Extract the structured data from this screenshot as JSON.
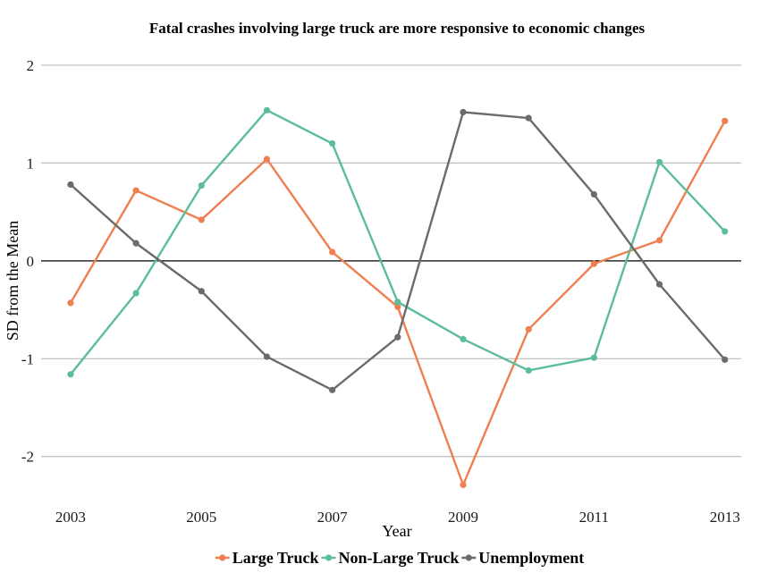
{
  "chart_data": {
    "type": "line",
    "title": "Fatal crashes involving large truck are more responsive to economic changes",
    "xlabel": "Year",
    "ylabel": "SD from the Mean",
    "x": [
      2003,
      2004,
      2005,
      2006,
      2007,
      2008,
      2009,
      2010,
      2011,
      2012,
      2013
    ],
    "xticks": [
      "2003",
      "2005",
      "2007",
      "2009",
      "2011",
      "2013"
    ],
    "xlim": [
      2002.55,
      2013.25
    ],
    "yticks": [
      "2",
      "1",
      "0",
      "-1",
      "-2"
    ],
    "ylim": [
      -2.45,
      2.1
    ],
    "grid": true,
    "reference_line": 0,
    "legend_position": "bottom",
    "series": [
      {
        "name": "Large Truck",
        "color": "#f07f50",
        "values": [
          -0.43,
          0.72,
          0.42,
          1.04,
          0.09,
          -0.47,
          -2.29,
          -0.7,
          -0.03,
          0.21,
          1.43
        ]
      },
      {
        "name": "Non-Large Truck",
        "color": "#5bbd9b",
        "values": [
          -1.16,
          -0.33,
          0.77,
          1.54,
          1.2,
          -0.42,
          -0.8,
          -1.12,
          -0.99,
          1.01,
          0.3
        ]
      },
      {
        "name": "Unemployment",
        "color": "#6b6b6b",
        "values": [
          0.78,
          0.18,
          -0.31,
          -0.98,
          -1.32,
          -0.78,
          1.52,
          1.46,
          0.68,
          -0.24,
          -1.01
        ]
      }
    ]
  }
}
